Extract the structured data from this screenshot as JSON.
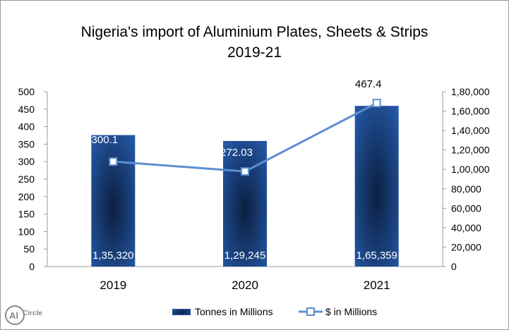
{
  "chart_data": {
    "type": "bar",
    "title_line1": "Nigeria's import of Aluminium Plates, Sheets & Strips",
    "title_line2": "2019-21",
    "categories": [
      "2019",
      "2020",
      "2021"
    ],
    "series": [
      {
        "name": "Tonnes in Millions",
        "type": "bar",
        "axis": "right",
        "values": [
          135320,
          129245,
          165359
        ],
        "labels": [
          "1,35,320",
          "1,29,245",
          "1,65,359"
        ],
        "color": "#1f4e8c"
      },
      {
        "name": "$ in Millions",
        "type": "line",
        "axis": "left",
        "values": [
          300.1,
          272.03,
          467.4
        ],
        "labels": [
          "300.1",
          "272.03",
          "467.4"
        ],
        "color": "#5b8fd0"
      }
    ],
    "left_axis": {
      "ylim": [
        0,
        500
      ],
      "ticks": [
        "0",
        "50",
        "100",
        "150",
        "200",
        "250",
        "300",
        "350",
        "400",
        "450",
        "500"
      ]
    },
    "right_axis": {
      "ylim": [
        0,
        180000
      ],
      "ticks": [
        "0",
        "20,000",
        "40,000",
        "60,000",
        "80,000",
        "1,00,000",
        "1,20,000",
        "1,40,000",
        "1,60,000",
        "1,80,000"
      ]
    },
    "grid": false,
    "legend_position": "bottom"
  },
  "logo": {
    "text": "Al",
    "brand": "Circle"
  }
}
